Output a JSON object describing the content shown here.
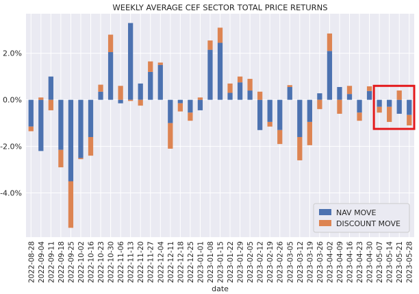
{
  "chart_data": {
    "type": "bar",
    "stacked": true,
    "title": "WEEKLY AVERAGE CEF SECTOR TOTAL PRICE RETURNS",
    "xlabel": "date",
    "ylabel": "",
    "ylim": [
      -5.9,
      3.7
    ],
    "yticks": [
      -4,
      -2,
      0,
      2
    ],
    "ytick_labels": [
      "-4.0%",
      "-2.0%",
      "0.0%",
      "2.0%"
    ],
    "legend_position": "bottom-right",
    "categories": [
      "2022-08-28",
      "2022-09-04",
      "2022-09-11",
      "2022-09-18",
      "2022-09-25",
      "2022-10-02",
      "2022-10-16",
      "2022-10-23",
      "2022-10-30",
      "2022-11-06",
      "2022-11-13",
      "2022-11-20",
      "2022-11-27",
      "2022-12-04",
      "2022-12-11",
      "2022-12-18",
      "2022-12-25",
      "2023-01-01",
      "2023-01-08",
      "2023-01-15",
      "2023-01-22",
      "2023-01-29",
      "2023-02-05",
      "2023-02-12",
      "2023-02-19",
      "2023-02-26",
      "2023-03-05",
      "2023-03-12",
      "2023-03-19",
      "2023-03-26",
      "2023-04-02",
      "2023-04-09",
      "2023-04-16",
      "2023-04-23",
      "2023-04-30",
      "2023-05-07",
      "2023-05-14",
      "2023-05-21",
      "2023-05-28"
    ],
    "series": [
      {
        "name": "NAV MOVE",
        "color": "#4c72b0",
        "values": [
          -1.15,
          -2.2,
          1.0,
          -2.15,
          -3.5,
          -2.5,
          -1.6,
          0.35,
          2.05,
          -0.15,
          3.3,
          0.7,
          1.2,
          1.5,
          -1.0,
          -0.15,
          -0.55,
          -0.45,
          2.15,
          2.45,
          0.3,
          0.75,
          0.4,
          -1.3,
          -0.95,
          -1.3,
          0.55,
          -1.6,
          -0.95,
          0.28,
          2.1,
          0.55,
          0.25,
          -0.55,
          0.38,
          -0.3,
          -0.3,
          -0.6,
          -0.65
        ]
      },
      {
        "name": "DISCOUNT MOVE",
        "color": "#dd8452",
        "values": [
          -0.2,
          0.1,
          -0.45,
          -0.75,
          -2.0,
          -0.05,
          -0.8,
          0.3,
          0.75,
          0.6,
          -0.05,
          -0.25,
          0.45,
          0.1,
          -1.1,
          -0.35,
          -0.35,
          0.1,
          0.4,
          0.65,
          0.4,
          0.25,
          0.5,
          0.35,
          -0.2,
          -0.6,
          0.08,
          -1.0,
          -1.0,
          -0.4,
          0.75,
          -0.6,
          0.35,
          -0.35,
          0.2,
          -0.25,
          -0.65,
          0.4,
          -0.45
        ]
      }
    ],
    "highlight": {
      "color": "#e4191c",
      "categories": [
        "2023-05-07",
        "2023-05-28"
      ]
    }
  }
}
